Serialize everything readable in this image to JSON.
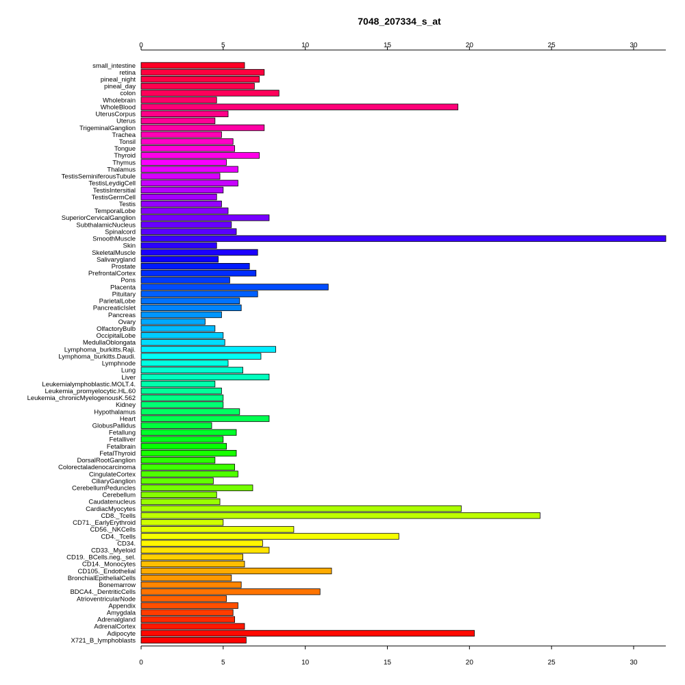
{
  "chart_data": {
    "type": "bar",
    "orientation": "horizontal",
    "title": "7048_207334_s_at",
    "xlabel": "",
    "ylabel": "",
    "xlim": [
      0,
      32
    ],
    "xticks": [
      0,
      5,
      10,
      15,
      20,
      25,
      30
    ],
    "grid": false,
    "categories": [
      "small_intestine",
      "retina",
      "pineal_night",
      "pineal_day",
      "colon",
      "Wholebrain",
      "WholeBlood",
      "UterusCorpus",
      "Uterus",
      "TrigeminalGanglion",
      "Trachea",
      "Tonsil",
      "Tongue",
      "Thyroid",
      "Thymus",
      "Thalamus",
      "TestisSeminiferousTubule",
      "TestisLeydigCell",
      "TestisIntersitial",
      "TestisGermCell",
      "Testis",
      "TemporalLobe",
      "SuperiorCervicalGanglion",
      "SubthalamicNucleus",
      "Spinalcord",
      "SmoothMuscle",
      "Skin",
      "SkeletalMuscle",
      "Salivarygland",
      "Prostate",
      "PrefrontalCortex",
      "Pons",
      "Placenta",
      "Pituitary",
      "ParietalLobe",
      "PancreaticIslet",
      "Pancreas",
      "Ovary",
      "OlfactoryBulb",
      "OccipitalLobe",
      "MedullaOblongata",
      "Lymphoma_burkitts.Raji.",
      "Lymphoma_burkitts.Daudi.",
      "Lymphnode",
      "Lung",
      "Liver",
      "Leukemialymphoblastic.MOLT.4.",
      "Leukemia_promyelocytic.HL.60",
      "Leukemia_chronicMyelogenousK.562",
      "Kidney",
      "Hypothalamus",
      "Heart",
      "GlobusPallidus",
      "Fetallung",
      "Fetalliver",
      "Fetalbrain",
      "FetalThyroid",
      "DorsalRootGanglion",
      "Colorectaladenocarcinoma",
      "CingulateCortex",
      "CiliaryGanglion",
      "CerebellumPeduncles",
      "Cerebellum",
      "Caudatenucleus",
      "CardiacMyocytes",
      "CD8._Tcells",
      "CD71._EarlyErythroid",
      "CD56._NKCells",
      "CD4._Tcells",
      "CD34.",
      "CD33._Myeloid",
      "CD19._BCells.neg._sel.",
      "CD14._Monocytes",
      "CD105._Endothelial",
      "BronchialEpithelialCells",
      "Bonemarrow",
      "BDCA4._DentriticCells",
      "AtrioventricularNode",
      "Appendix",
      "Amygdala",
      "Adrenalgland",
      "AdrenalCortex",
      "Adipocyte",
      "X721_B_lymphoblasts"
    ],
    "values": [
      6.3,
      7.5,
      7.2,
      6.9,
      8.4,
      4.6,
      19.3,
      5.3,
      4.5,
      7.5,
      4.9,
      5.6,
      5.7,
      7.2,
      5.2,
      5.9,
      4.8,
      5.9,
      5.0,
      4.6,
      4.9,
      5.3,
      7.8,
      5.5,
      5.8,
      32.0,
      4.6,
      7.1,
      4.7,
      6.6,
      7.0,
      5.4,
      11.4,
      7.1,
      6.0,
      6.1,
      4.9,
      3.9,
      4.5,
      5.0,
      5.1,
      8.2,
      7.3,
      5.3,
      6.2,
      7.8,
      4.5,
      4.9,
      5.0,
      5.0,
      6.0,
      7.8,
      4.3,
      5.8,
      5.0,
      5.2,
      5.8,
      4.5,
      5.7,
      5.9,
      4.4,
      6.8,
      4.6,
      4.8,
      19.5,
      24.3,
      5.0,
      9.3,
      15.7,
      7.4,
      7.8,
      6.2,
      6.3,
      11.6,
      5.5,
      6.1,
      10.9,
      5.2,
      5.9,
      5.6,
      5.7,
      6.3,
      20.3,
      6.4
    ],
    "colors": [
      "#FF0026",
      "#FF0040",
      "#FF0045",
      "#FF004E",
      "#FF005A",
      "#FF0068",
      "#FF0077",
      "#FF0088",
      "#FF0095",
      "#FF00A5",
      "#FF00B5",
      "#FF00C7",
      "#FF00D8",
      "#FF00E8",
      "#F900FF",
      "#E800FF",
      "#D800FF",
      "#C700FF",
      "#B500FF",
      "#A500FF",
      "#9500FF",
      "#8800FF",
      "#7700FF",
      "#6800FF",
      "#5A00FF",
      "#3B00FF",
      "#2C00FF",
      "#1C00FF",
      "#0D00FF",
      "#001AFF",
      "#002CFF",
      "#003BFF",
      "#004CFF",
      "#0060FF",
      "#0072FF",
      "#0084FF",
      "#0096FF",
      "#00A8FF",
      "#00BAFF",
      "#00CCFF",
      "#00DDFF",
      "#00EEFF",
      "#00FFF6",
      "#00FFE3",
      "#00FFD0",
      "#00FFBE",
      "#00FFAB",
      "#00FF99",
      "#00FF86",
      "#00FF74",
      "#00FF62",
      "#00FF4F",
      "#00FF3D",
      "#00FF2A",
      "#00FF18",
      "#06FF00",
      "#18FF00",
      "#2AFF00",
      "#3DFF00",
      "#4FFF00",
      "#62FF00",
      "#74FF00",
      "#86FF00",
      "#99FF00",
      "#ABFF00",
      "#BEFF00",
      "#D0FF00",
      "#E3FF00",
      "#F6FF00",
      "#FFF600",
      "#FFE300",
      "#FFD000",
      "#FFBE00",
      "#FFAB00",
      "#FF9900",
      "#FF8600",
      "#FF7400",
      "#FF6200",
      "#FF4F00",
      "#FF3D00",
      "#FF2A00",
      "#FF1800",
      "#FF0900",
      "#FF0000"
    ]
  }
}
